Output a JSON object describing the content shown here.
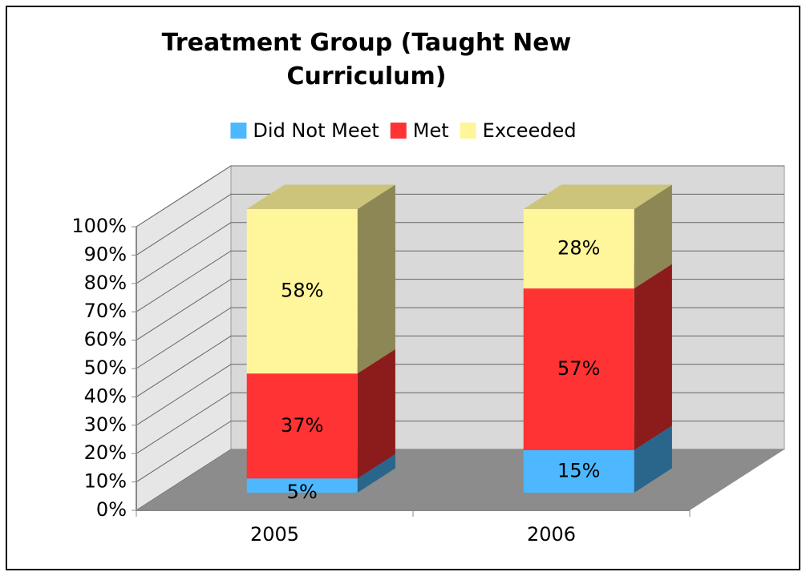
{
  "chart_data": {
    "type": "bar3d_stacked",
    "title": "Treatment Group (Taught New Curriculum)",
    "categories": [
      "2005",
      "2006"
    ],
    "series": [
      {
        "name": "Did Not Meet",
        "color": "#4db8ff",
        "values": [
          5,
          15
        ],
        "value_labels": [
          "5%",
          "15%"
        ]
      },
      {
        "name": "Met",
        "color": "#ff3333",
        "values": [
          37,
          57
        ],
        "value_labels": [
          "37%",
          "57%"
        ]
      },
      {
        "name": "Exceeded",
        "color": "#fff59a",
        "values": [
          58,
          28
        ],
        "value_labels": [
          "58%",
          "28%"
        ]
      }
    ],
    "ylim": [
      0,
      100
    ],
    "yticks": [
      {
        "value": 0,
        "label": "0%"
      },
      {
        "value": 10,
        "label": "10%"
      },
      {
        "value": 20,
        "label": "20%"
      },
      {
        "value": 30,
        "label": "30%"
      },
      {
        "value": 40,
        "label": "40%"
      },
      {
        "value": 50,
        "label": "50%"
      },
      {
        "value": 60,
        "label": "60%"
      },
      {
        "value": 70,
        "label": "70%"
      },
      {
        "value": 80,
        "label": "80%"
      },
      {
        "value": 90,
        "label": "90%"
      },
      {
        "value": 100,
        "label": "100%"
      }
    ],
    "grid": true,
    "legend": "top"
  }
}
